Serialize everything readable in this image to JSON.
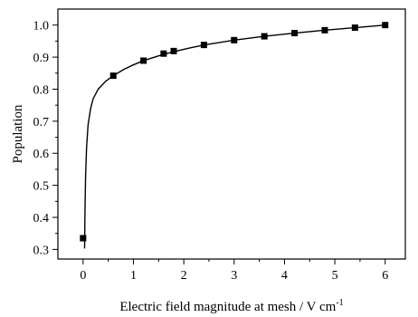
{
  "chart_data": {
    "type": "scatter",
    "xlabel": "Electric field magnitude at mesh / V cm",
    "xlabel_superscript": "-1",
    "ylabel": "Population",
    "xlim": [
      -0.5,
      6.4
    ],
    "ylim": [
      0.27,
      1.05
    ],
    "xticks": [
      "0",
      "1",
      "2",
      "3",
      "4",
      "5",
      "6"
    ],
    "yticks": [
      "0.3",
      "0.4",
      "0.5",
      "0.6",
      "0.7",
      "0.8",
      "0.9",
      "1.0"
    ],
    "grid": false,
    "series": [
      {
        "marker": "square",
        "color": "#000000",
        "x": [
          0.0,
          0.6,
          1.2,
          1.6,
          1.8,
          2.4,
          3.0,
          3.6,
          4.2,
          4.8,
          5.4,
          6.0
        ],
        "y": [
          0.335,
          0.842,
          0.889,
          0.911,
          0.919,
          0.938,
          0.953,
          0.965,
          0.975,
          0.984,
          0.992,
          1.0
        ]
      },
      {
        "style": "line",
        "color": "#000000",
        "x": [
          0.03,
          0.035,
          0.04,
          0.05,
          0.07,
          0.1,
          0.15,
          0.2,
          0.3,
          0.45,
          0.6,
          0.8,
          1.0,
          1.2,
          1.5,
          1.8,
          2.1,
          2.4,
          3.0,
          3.6,
          4.2,
          4.8,
          5.4,
          6.0
        ],
        "y": [
          0.303,
          0.38,
          0.44,
          0.53,
          0.62,
          0.69,
          0.74,
          0.77,
          0.8,
          0.825,
          0.842,
          0.861,
          0.876,
          0.889,
          0.904,
          0.917,
          0.928,
          0.938,
          0.953,
          0.965,
          0.975,
          0.984,
          0.992,
          1.0
        ]
      }
    ]
  }
}
